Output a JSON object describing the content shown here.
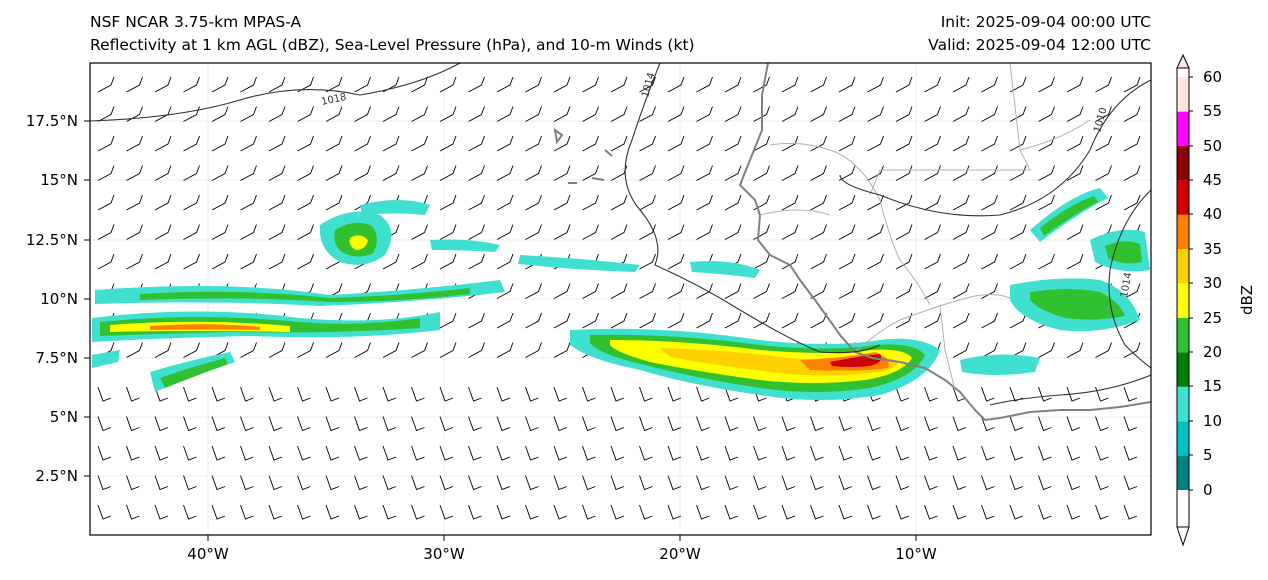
{
  "title": {
    "left_line1": "NSF NCAR 3.75-km MPAS-A",
    "left_line2": "Reflectivity at 1 km AGL (dBZ), Sea-Level Pressure (hPa), and 10-m Winds (kt)",
    "right_line1": "Init: 2025-09-04 00:00 UTC",
    "right_line2": "Valid: 2025-09-04 12:00 UTC"
  },
  "axes": {
    "lat_labels": [
      "17.5°N",
      "15°N",
      "12.5°N",
      "10°N",
      "7.5°N",
      "5°N",
      "2.5°N"
    ],
    "lon_labels": [
      "40°W",
      "30°W",
      "20°W",
      "10°W"
    ]
  },
  "isobars": {
    "labels": [
      "1018",
      "1014",
      "1010",
      "1014"
    ]
  },
  "colorbar": {
    "title": "dBZ",
    "ticks": [
      "0",
      "5",
      "10",
      "15",
      "20",
      "25",
      "30",
      "35",
      "40",
      "45",
      "50",
      "55",
      "60"
    ],
    "colors": [
      "#008080",
      "#00c0c0",
      "#40e0d0",
      "#008000",
      "#30c030",
      "#ffff00",
      "#ffd000",
      "#ff8000",
      "#cc0000",
      "#8b0000",
      "#ff00ff",
      "#ffe4e1"
    ]
  },
  "chart_data": {
    "type": "map",
    "region": "Tropical Atlantic / West Africa",
    "lat_range": [
      0,
      20
    ],
    "lon_range": [
      -45,
      0
    ],
    "fields": [
      "Reflectivity at 1 km AGL (dBZ)",
      "Sea-Level Pressure (hPa)",
      "10-m Winds (kt)"
    ],
    "colorbar_range_dbz": [
      0,
      60
    ]
  }
}
